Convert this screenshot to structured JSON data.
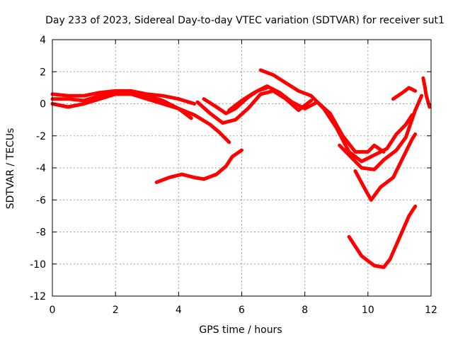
{
  "chart_data": {
    "type": "scatter",
    "title": "Day 233 of 2023, Sidereal Day-to-day VTEC variation (SDTVAR) for receiver sut1",
    "xlabel": "GPS time / hours",
    "ylabel": "SDTVAR / TECUs",
    "xlim": [
      0,
      12
    ],
    "ylim": [
      -12,
      4
    ],
    "xticks": [
      0,
      2,
      4,
      6,
      8,
      10,
      12
    ],
    "yticks": [
      -12,
      -10,
      -8,
      -6,
      -4,
      -2,
      0,
      2,
      4
    ],
    "grid": true,
    "marker": "+",
    "color": "#ff0000",
    "series": [
      {
        "name": "track-1",
        "points": [
          [
            0,
            0.6
          ],
          [
            0.5,
            0.5
          ],
          [
            1,
            0.5
          ],
          [
            1.5,
            0.7
          ],
          [
            2,
            0.8
          ],
          [
            2.5,
            0.8
          ],
          [
            3,
            0.6
          ],
          [
            3.5,
            0.5
          ],
          [
            4,
            0.3
          ],
          [
            4.5,
            0
          ]
        ]
      },
      {
        "name": "track-2",
        "points": [
          [
            0,
            0.3
          ],
          [
            0.5,
            0.3
          ],
          [
            1,
            0.2
          ],
          [
            1.5,
            0.5
          ],
          [
            2,
            0.7
          ],
          [
            2.5,
            0.7
          ],
          [
            3,
            0.5
          ],
          [
            3.5,
            0.2
          ],
          [
            4,
            -0.3
          ],
          [
            4.4,
            -0.9
          ]
        ]
      },
      {
        "name": "track-3",
        "points": [
          [
            0,
            0
          ],
          [
            0.5,
            -0.2
          ],
          [
            1,
            0
          ],
          [
            1.5,
            0.3
          ],
          [
            2,
            0.6
          ],
          [
            2.5,
            0.6
          ],
          [
            3,
            0.3
          ],
          [
            3.5,
            0
          ],
          [
            4,
            -0.3
          ],
          [
            4.5,
            -0.7
          ],
          [
            5,
            -1.3
          ],
          [
            5.3,
            -1.8
          ],
          [
            5.6,
            -2.4
          ]
        ]
      },
      {
        "name": "track-4",
        "points": [
          [
            4.8,
            0.3
          ],
          [
            5.2,
            -0.2
          ],
          [
            5.5,
            -0.6
          ],
          [
            5.8,
            -0.3
          ],
          [
            6.2,
            0.4
          ],
          [
            6.5,
            0.8
          ],
          [
            6.8,
            1
          ]
        ]
      },
      {
        "name": "track-5",
        "points": [
          [
            4.6,
            0.1
          ],
          [
            5,
            -0.6
          ],
          [
            5.4,
            -1.2
          ],
          [
            5.8,
            -1
          ],
          [
            6.2,
            -0.3
          ],
          [
            6.6,
            0.6
          ],
          [
            7,
            0.8
          ],
          [
            7.4,
            0.3
          ],
          [
            7.8,
            -0.4
          ],
          [
            8.2,
            0.2
          ]
        ]
      },
      {
        "name": "track-6",
        "points": [
          [
            5.6,
            -0.4
          ],
          [
            6,
            0.2
          ],
          [
            6.4,
            0.7
          ],
          [
            6.8,
            1.1
          ],
          [
            7.2,
            0.7
          ],
          [
            7.6,
            0.1
          ],
          [
            8,
            -0.3
          ],
          [
            8.4,
            0.1
          ],
          [
            8.8,
            -0.6
          ],
          [
            9.2,
            -2
          ],
          [
            9.6,
            -3
          ],
          [
            10,
            -3
          ],
          [
            10.2,
            -2.6
          ],
          [
            10.5,
            -3
          ]
        ]
      },
      {
        "name": "track-7",
        "points": [
          [
            6.6,
            2.1
          ],
          [
            7,
            1.8
          ],
          [
            7.4,
            1.3
          ],
          [
            7.8,
            0.8
          ],
          [
            8.2,
            0.5
          ],
          [
            8.6,
            -0.3
          ],
          [
            9,
            -1.5
          ],
          [
            9.4,
            -3
          ],
          [
            9.8,
            -3.6
          ],
          [
            10.2,
            -3.2
          ],
          [
            10.6,
            -2.8
          ],
          [
            10.9,
            -1.9
          ],
          [
            11.2,
            -1.3
          ],
          [
            11.4,
            -0.7
          ]
        ]
      },
      {
        "name": "track-8",
        "points": [
          [
            9.1,
            -2.6
          ],
          [
            9.5,
            -3.4
          ],
          [
            9.8,
            -4
          ],
          [
            10.2,
            -4.1
          ],
          [
            10.5,
            -3.5
          ],
          [
            10.9,
            -2.9
          ],
          [
            11.2,
            -2.1
          ],
          [
            11.5,
            -0.4
          ],
          [
            11.7,
            0.5
          ]
        ]
      },
      {
        "name": "track-9",
        "points": [
          [
            9.6,
            -4.2
          ],
          [
            9.9,
            -5.3
          ],
          [
            10.1,
            -6
          ],
          [
            10.4,
            -5.2
          ],
          [
            10.8,
            -4.6
          ],
          [
            11.1,
            -3.4
          ],
          [
            11.4,
            -2.2
          ],
          [
            11.5,
            -1.9
          ]
        ]
      },
      {
        "name": "track-10",
        "points": [
          [
            10.8,
            0.3
          ],
          [
            11.1,
            0.7
          ],
          [
            11.3,
            1
          ],
          [
            11.5,
            0.8
          ]
        ]
      },
      {
        "name": "track-11",
        "points": [
          [
            11.75,
            1.6
          ],
          [
            11.8,
            1.1
          ],
          [
            11.85,
            0.5
          ],
          [
            11.95,
            -0.2
          ]
        ]
      },
      {
        "name": "track-12",
        "points": [
          [
            3.3,
            -4.9
          ],
          [
            3.7,
            -4.6
          ],
          [
            4.1,
            -4.4
          ],
          [
            4.5,
            -4.6
          ],
          [
            4.8,
            -4.7
          ],
          [
            5.2,
            -4.4
          ],
          [
            5.5,
            -3.9
          ],
          [
            5.7,
            -3.3
          ],
          [
            6,
            -2.9
          ]
        ]
      },
      {
        "name": "track-13",
        "points": [
          [
            9.4,
            -8.3
          ],
          [
            9.6,
            -8.9
          ],
          [
            9.8,
            -9.5
          ],
          [
            10,
            -9.8
          ],
          [
            10.2,
            -10.1
          ],
          [
            10.5,
            -10.2
          ],
          [
            10.7,
            -9.7
          ],
          [
            10.9,
            -8.8
          ],
          [
            11.1,
            -7.9
          ],
          [
            11.3,
            -7
          ],
          [
            11.5,
            -6.4
          ]
        ]
      }
    ]
  }
}
